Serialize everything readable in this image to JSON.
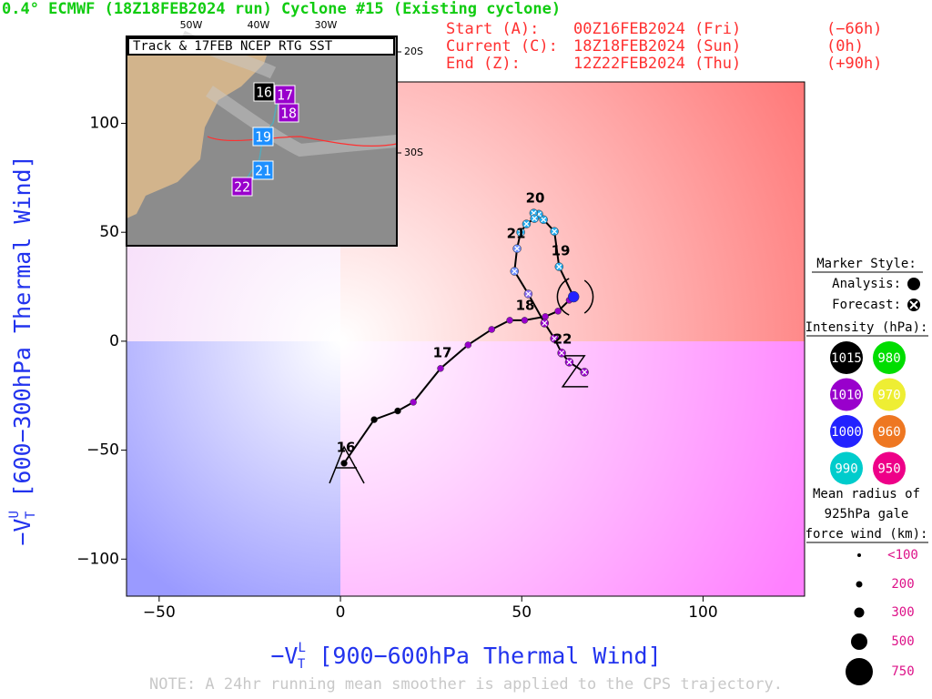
{
  "header": {
    "title": "0.4° ECMWF (18Z18FEB2024 run) Cyclone #15 (Existing cyclone)",
    "rows": [
      [
        "Start (A):",
        "00Z16FEB2024 (Fri)",
        "(−66h)"
      ],
      [
        "Current (C):",
        "18Z18FEB2024 (Sun)",
        "(0h)"
      ],
      [
        "End (Z):",
        "12Z22FEB2024 (Thu)",
        "(+90h)"
      ]
    ]
  },
  "chart_data": {
    "type": "scatter",
    "xlabel": {
      "main": "−V",
      "sup": "L",
      "sub": "T",
      "rest": " [900−600hPa Thermal Wind]"
    },
    "ylabel": {
      "main": "−V",
      "sup": "U",
      "sub": "T",
      "rest": " [600−300hPa Thermal Wind]"
    },
    "xlim": [
      -59,
      128
    ],
    "ylim": [
      -117,
      119
    ],
    "xticks": [
      {
        "value": -50,
        "label": "−50"
      },
      0,
      50,
      100
    ],
    "yticks": [
      {
        "value": -100,
        "label": "−100"
      },
      {
        "value": -50,
        "label": "−50"
      },
      0,
      50,
      100
    ],
    "line_color": "#000000",
    "series": [
      {
        "name": "Analysis",
        "color": "#000000",
        "x": [
          1,
          9.3,
          15.8,
          20.1,
          27.6,
          35.2,
          41.7,
          46.7,
          50.8,
          56.5,
          60,
          63.1,
          64.3
        ],
        "y": [
          -56,
          -36,
          -32,
          -28,
          -12.5,
          -1.7,
          5.4,
          9.6,
          9.6,
          11.3,
          13.8,
          18.8,
          20.4
        ],
        "point_colors": [
          "#000000",
          "#000000",
          "#000000",
          "#9900cc",
          "#9900cc",
          "#9900cc",
          "#9900cc",
          "#9900cc",
          "#9900cc",
          "#9900cc",
          "#9900cc",
          "#9900cc",
          "#2222ff"
        ]
      },
      {
        "name": "Forecast",
        "color": "#000000",
        "x": [
          60.3,
          59,
          56,
          54.7,
          53.3,
          53.5,
          51.3,
          49.7,
          48.7,
          48,
          51.8,
          56.3,
          59,
          61,
          63.1,
          67.3
        ],
        "y": [
          34.2,
          50.4,
          55.8,
          58.3,
          58.8,
          56.3,
          53.8,
          50,
          42.5,
          32.1,
          21.7,
          8.3,
          1.25,
          -5.4,
          -9.6,
          -14.2
        ],
        "point_colors": [
          "#22aaee",
          "#22aaee",
          "#22aaee",
          "#22aaee",
          "#22aaee",
          "#22aaee",
          "#22aaee",
          "#22aaee",
          "#6a8cff",
          "#6a8cff",
          "#8a6cf0",
          "#9900cc",
          "#9900cc",
          "#9900cc",
          "#9900cc",
          "#9900cc"
        ]
      }
    ],
    "day_labels": [
      "16",
      "17",
      "18",
      "19",
      "20",
      "21",
      "22"
    ],
    "note": "NOTE:  A 24hr running mean smoother is applied to the CPS trajectory."
  },
  "inset": {
    "title": "Track & 17FEB NCEP RTG SST",
    "lon_labels": [
      "50W",
      "40W",
      "30W"
    ],
    "lat_labels": [
      "20S",
      "30S"
    ],
    "markers": [
      {
        "label": "16",
        "color": "#000000"
      },
      {
        "label": "17",
        "color": "#9900cc"
      },
      {
        "label": "18",
        "color": "#9900cc"
      },
      {
        "label": "19",
        "color": "#1e90ff"
      },
      {
        "label": "21",
        "color": "#1e90ff"
      },
      {
        "label": "22",
        "color": "#9900cc"
      }
    ]
  },
  "legend": {
    "marker_title": "Marker Style:",
    "analysis": "Analysis:",
    "forecast": "Forecast:",
    "intensity_title": "Intensity (hPa):",
    "intensity": [
      {
        "label": "1015",
        "color": "#000000"
      },
      {
        "label": "980",
        "color": "#00dd00"
      },
      {
        "label": "1010",
        "color": "#9900cc"
      },
      {
        "label": "970",
        "color": "#eeee33"
      },
      {
        "label": "1000",
        "color": "#2222ff"
      },
      {
        "label": "960",
        "color": "#ee7722"
      },
      {
        "label": "990",
        "color": "#00cccc"
      },
      {
        "label": "950",
        "color": "#ee0088"
      }
    ],
    "size_title": [
      "Mean radius of",
      "925hPa gale",
      "force wind (km):"
    ],
    "sizes": [
      "<100",
      "200",
      "300",
      "500",
      "750"
    ]
  }
}
